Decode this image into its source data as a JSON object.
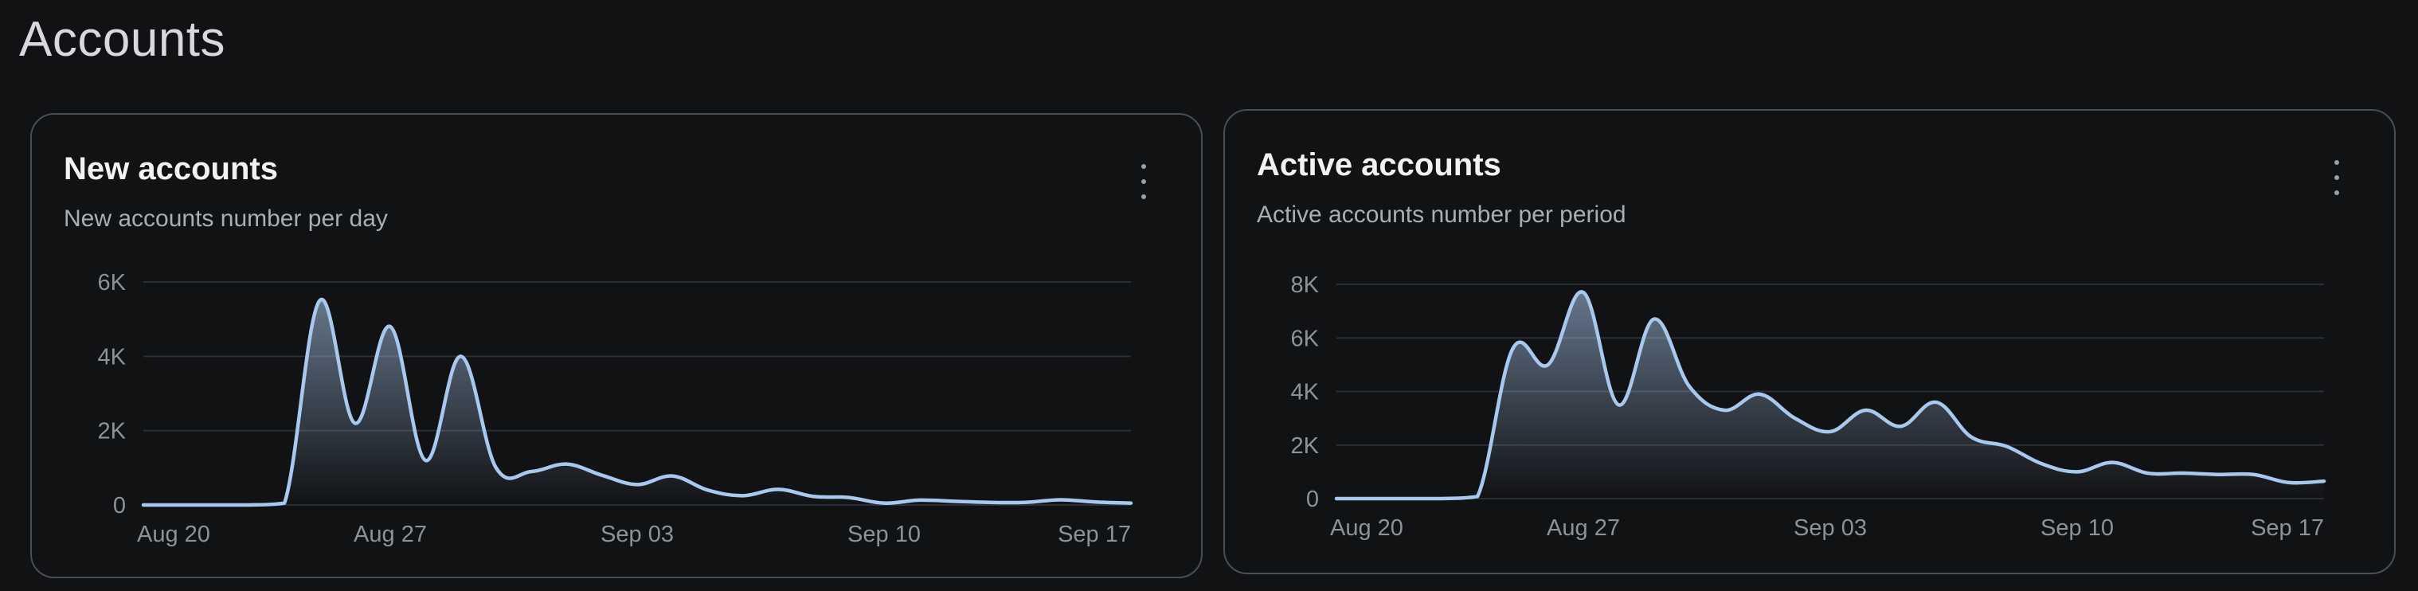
{
  "page": {
    "title": "Accounts"
  },
  "colors": {
    "background": "#111214",
    "card_border": "#4a4d54",
    "line": "#a9c8ee",
    "grid": "#2b2e33",
    "tick_text": "#8d9199"
  },
  "cards": [
    {
      "title": "New accounts",
      "subtitle": "New accounts number per day",
      "menu_icon": "kebab-vertical-icon"
    },
    {
      "title": "Active accounts",
      "subtitle": "Active accounts number per period",
      "menu_icon": "kebab-vertical-icon"
    }
  ],
  "chart_data": [
    {
      "type": "area",
      "title": "New accounts",
      "subtitle": "New accounts number per day",
      "xlabel": "",
      "ylabel": "",
      "ylim": [
        0,
        6000
      ],
      "y_ticks": [
        0,
        2000,
        4000,
        6000
      ],
      "y_tick_labels": [
        "0",
        "2K",
        "4K",
        "6K"
      ],
      "x_ticks": [
        "Aug 20",
        "Aug 27",
        "Sep 03",
        "Sep 10",
        "Sep 17"
      ],
      "x": [
        "Aug 20",
        "Aug 21",
        "Aug 22",
        "Aug 23",
        "Aug 24",
        "Aug 25",
        "Aug 26",
        "Aug 27",
        "Aug 28",
        "Aug 29",
        "Aug 30",
        "Aug 31",
        "Sep 01",
        "Sep 02",
        "Sep 03",
        "Sep 04",
        "Sep 05",
        "Sep 06",
        "Sep 07",
        "Sep 08",
        "Sep 09",
        "Sep 10",
        "Sep 11",
        "Sep 12",
        "Sep 13",
        "Sep 14",
        "Sep 15",
        "Sep 16",
        "Sep 17"
      ],
      "series": [
        {
          "values": [
            0,
            0,
            0,
            0,
            50,
            5500,
            2200,
            4800,
            1200,
            4000,
            1000,
            900,
            1100,
            800,
            550,
            780,
            400,
            250,
            420,
            230,
            200,
            50,
            130,
            100,
            70,
            70,
            140,
            80,
            50
          ]
        }
      ],
      "grid": true,
      "legend": "none"
    },
    {
      "type": "area",
      "title": "Active accounts",
      "subtitle": "Active accounts number per period",
      "xlabel": "",
      "ylabel": "",
      "ylim": [
        0,
        8000
      ],
      "y_ticks": [
        0,
        2000,
        4000,
        6000,
        8000
      ],
      "y_tick_labels": [
        "0",
        "2K",
        "4K",
        "6K",
        "8K"
      ],
      "x_ticks": [
        "Aug 20",
        "Aug 27",
        "Sep 03",
        "Sep 10",
        "Sep 17"
      ],
      "x": [
        "Aug 20",
        "Aug 21",
        "Aug 22",
        "Aug 23",
        "Aug 24",
        "Aug 25",
        "Aug 26",
        "Aug 27",
        "Aug 28",
        "Aug 29",
        "Aug 30",
        "Aug 31",
        "Sep 01",
        "Sep 02",
        "Sep 03",
        "Sep 04",
        "Sep 05",
        "Sep 06",
        "Sep 07",
        "Sep 08",
        "Sep 09",
        "Sep 10",
        "Sep 11",
        "Sep 12",
        "Sep 13",
        "Sep 14",
        "Sep 15",
        "Sep 16",
        "Sep 17"
      ],
      "series": [
        {
          "values": [
            0,
            0,
            0,
            0,
            80,
            5600,
            5000,
            7700,
            3500,
            6700,
            4200,
            3300,
            3900,
            3000,
            2500,
            3300,
            2700,
            3600,
            2300,
            1950,
            1300,
            1000,
            1350,
            950,
            950,
            900,
            900,
            600,
            650
          ]
        }
      ],
      "grid": true,
      "legend": "none"
    }
  ]
}
